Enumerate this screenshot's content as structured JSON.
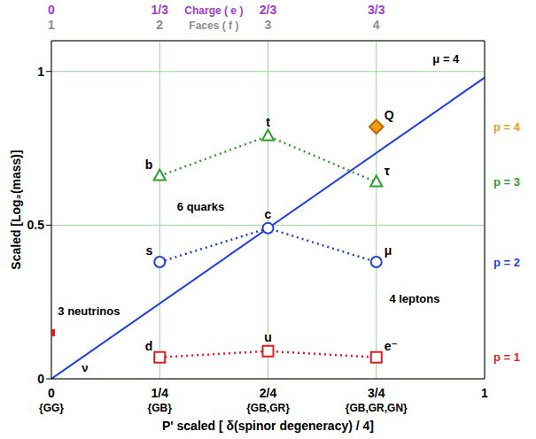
{
  "chart_data": {
    "type": "scatter",
    "x_label": "P' scaled [ δ(spinor degeneracy) / 4]",
    "y_label": "Scaled [Log₂(mass)]",
    "xlim": [
      0,
      1
    ],
    "ylim": [
      0,
      1.1
    ],
    "xticks": [
      0,
      {
        "value": 0.25,
        "label": "1/4"
      },
      {
        "value": 0.5,
        "label": "2/4"
      },
      {
        "value": 0.75,
        "label": "3/4"
      },
      1
    ],
    "xtick_sublabels": [
      "{GG}",
      "{GB}",
      "{GB,GR}",
      "{GB,GR,GN}",
      null
    ],
    "yticks": [
      0,
      0.5,
      1
    ],
    "grid": true,
    "top_axes": [
      {
        "title": "Charge ( e )",
        "color": "#a03cc8",
        "ticks": [
          0,
          {
            "value": 0.25,
            "label": "1/3"
          },
          {
            "value": 0.5,
            "label": "2/3"
          },
          {
            "value": 0.75,
            "label": "3/3"
          }
        ]
      },
      {
        "title": "Faces ( f )",
        "color": "#8c8c8c",
        "ticks": [
          {
            "value": 0,
            "label": "1"
          },
          {
            "value": 0.25,
            "label": "2"
          },
          {
            "value": 0.5,
            "label": "3"
          },
          {
            "value": 0.75,
            "label": "4"
          }
        ]
      }
    ],
    "series": [
      {
        "name": "p = 1",
        "color": "#e41a1c",
        "marker": "square",
        "line_style": "dotted",
        "x": [
          0.25,
          0.5,
          0.75
        ],
        "values": [
          0.07,
          0.09,
          0.07
        ],
        "point_labels": [
          "d",
          "u",
          "e⁻"
        ]
      },
      {
        "name": "p = 2",
        "color": "#1f3fe0",
        "marker": "circle",
        "line_style": "dotted",
        "x": [
          0.25,
          0.5,
          0.75
        ],
        "values": [
          0.38,
          0.49,
          0.38
        ],
        "point_labels": [
          "s",
          "c",
          "μ"
        ]
      },
      {
        "name": "p = 3",
        "color": "#2ca02c",
        "marker": "triangle",
        "line_style": "dotted",
        "x": [
          0.25,
          0.5,
          0.75
        ],
        "values": [
          0.66,
          0.79,
          0.64
        ],
        "point_labels": [
          "b",
          "t",
          "τ"
        ]
      },
      {
        "name": "p = 4",
        "color": "#f39c12",
        "marker": "diamond",
        "x": [
          0.75
        ],
        "values": [
          0.82
        ],
        "point_labels": [
          "Q"
        ]
      }
    ],
    "points": [
      {
        "x": 0,
        "value": 0.15,
        "color": "#e41a1c",
        "marker": "square"
      }
    ],
    "lines": [
      {
        "color": "#1f3fe0",
        "line_style": "solid",
        "x": [
          0,
          1
        ],
        "values": [
          0,
          0.98
        ]
      }
    ],
    "annotations": [
      {
        "text": "3 neutrinos",
        "x": 0.015,
        "y": 0.22
      },
      {
        "text": "ν",
        "x": 0.07,
        "y": 0.035
      },
      {
        "text": "6 quarks",
        "x": 0.29,
        "y": 0.56
      },
      {
        "text": "4 leptons",
        "x": 0.78,
        "y": 0.26
      },
      {
        "text": "μ = 4",
        "x": 0.88,
        "y": 1.04
      }
    ]
  }
}
